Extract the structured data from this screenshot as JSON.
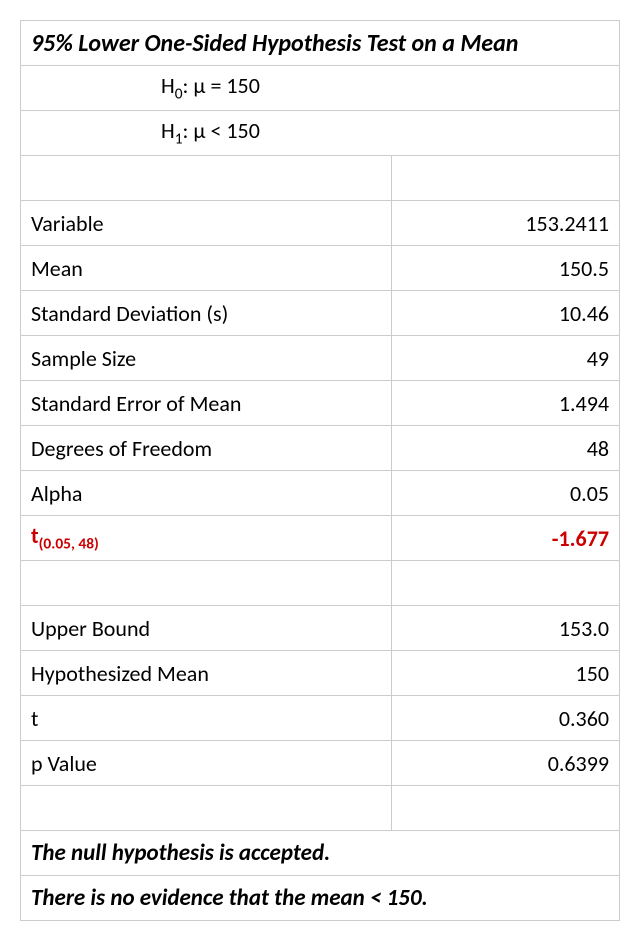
{
  "title": "95% Lower One-Sided Hypothesis Test on a Mean",
  "hypotheses": {
    "null_label": "H",
    "null_sub": "0",
    "null_rest": ": μ = 150",
    "alt_label": "H",
    "alt_sub": "1",
    "alt_rest": ": μ < 150"
  },
  "stats1": {
    "variable_label": "Variable",
    "variable_value": "153.2411",
    "mean_label": "Mean",
    "mean_value": "150.5",
    "sd_label": "Standard Deviation (s)",
    "sd_value": "10.46",
    "n_label": "Sample Size",
    "n_value": "49",
    "se_label": "Standard Error of Mean",
    "se_value": "1.494",
    "df_label": "Degrees of Freedom",
    "df_value": "48",
    "alpha_label": "Alpha",
    "alpha_value": "0.05"
  },
  "critical": {
    "label_t": "t",
    "label_sub": "(0.05, 48)",
    "value": "-1.677"
  },
  "stats2": {
    "upper_label": "Upper Bound",
    "upper_value": "153.0",
    "hmean_label": "Hypothesized Mean",
    "hmean_value": "150",
    "t_label": "t",
    "t_value": "0.360",
    "p_label": "p Value",
    "p_value": "0.6399"
  },
  "conclusion": {
    "line1": "The null hypothesis is accepted.",
    "line2": "There is no evidence that the mean < 150."
  },
  "colors": {
    "border": "#cccccc",
    "text": "#000000",
    "critical": "#cc0000"
  }
}
